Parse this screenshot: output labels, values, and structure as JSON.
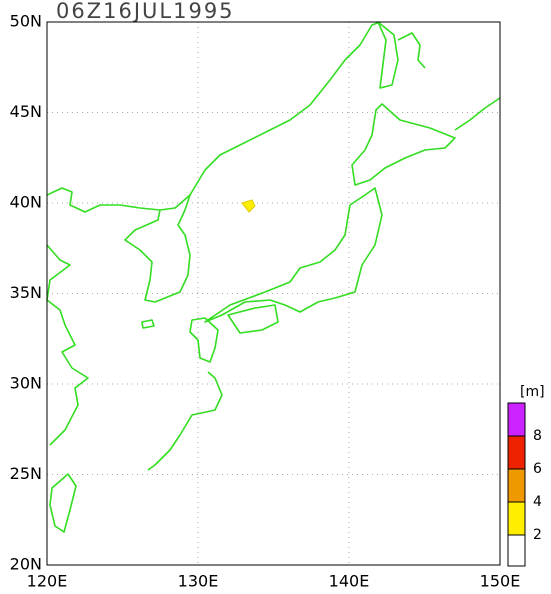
{
  "title": "06Z16JUL1995",
  "lat_labels": [
    "50N",
    "45N",
    "40N",
    "35N",
    "30N",
    "25N",
    "20N"
  ],
  "lon_labels": [
    "120E",
    "130E",
    "140E",
    "150E"
  ],
  "colorbar": {
    "unit": "[m]",
    "labels": [
      "2",
      "4",
      "6",
      "8"
    ]
  }
}
